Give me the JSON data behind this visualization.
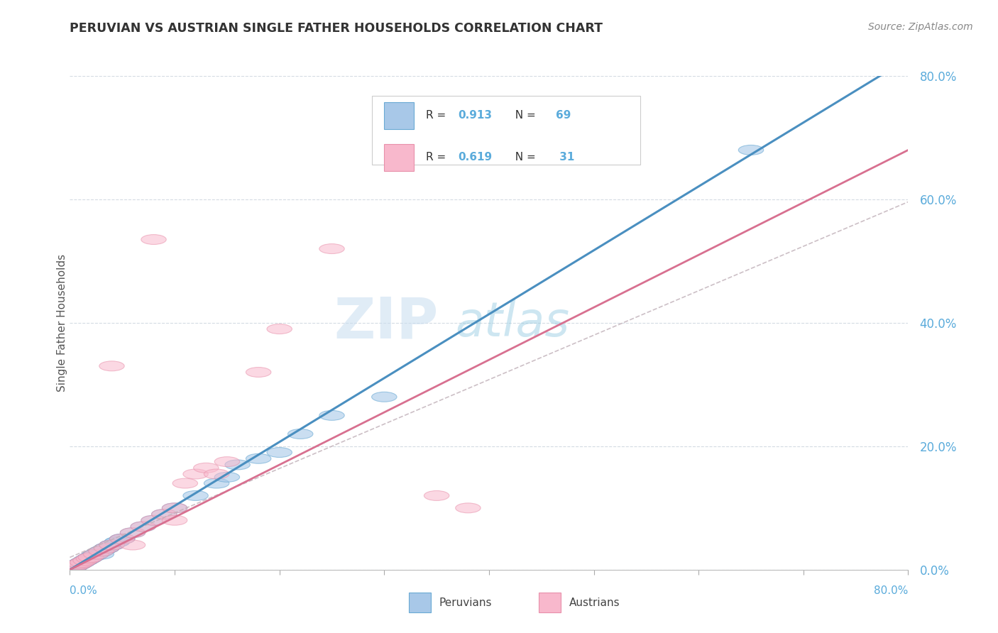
{
  "title": "PERUVIAN VS AUSTRIAN SINGLE FATHER HOUSEHOLDS CORRELATION CHART",
  "source": "Source: ZipAtlas.com",
  "ylabel": "Single Father Households",
  "watermark_zip": "ZIP",
  "watermark_atlas": "atlas",
  "xlim": [
    0.0,
    0.8
  ],
  "ylim": [
    0.0,
    0.8
  ],
  "yticks": [
    0.0,
    0.2,
    0.4,
    0.6,
    0.8
  ],
  "xtick_minor": [
    0.0,
    0.1,
    0.2,
    0.3,
    0.4,
    0.5,
    0.6,
    0.7,
    0.8
  ],
  "blue_color_fill": "#a8c8e8",
  "blue_color_edge": "#6aaad4",
  "blue_line_color": "#4a8fc0",
  "pink_color_fill": "#f8b8cc",
  "pink_color_edge": "#e890aa",
  "pink_line_color": "#d87090",
  "pink_dash_color": "#c0a0b0",
  "grid_color": "#d0d8e0",
  "background_color": "#ffffff",
  "tick_label_color": "#5aabdb",
  "legend_R_N_color": "#5aabdb",
  "title_color": "#333333",
  "source_color": "#888888",
  "blue_scatter_x": [
    0.005,
    0.008,
    0.01,
    0.012,
    0.015,
    0.018,
    0.02,
    0.022,
    0.025,
    0.028,
    0.01,
    0.012,
    0.015,
    0.018,
    0.022,
    0.025,
    0.028,
    0.03,
    0.032,
    0.035,
    0.015,
    0.018,
    0.022,
    0.025,
    0.03,
    0.035,
    0.04,
    0.005,
    0.008,
    0.01,
    0.012,
    0.015,
    0.018,
    0.022,
    0.025,
    0.03,
    0.035,
    0.04,
    0.045,
    0.05,
    0.005,
    0.008,
    0.01,
    0.012,
    0.015,
    0.018,
    0.02,
    0.025,
    0.03,
    0.035,
    0.04,
    0.045,
    0.05,
    0.06,
    0.07,
    0.08,
    0.09,
    0.1,
    0.12,
    0.14,
    0.15,
    0.16,
    0.18,
    0.2,
    0.22,
    0.25,
    0.3,
    0.65,
    0.03
  ],
  "blue_scatter_y": [
    0.005,
    0.008,
    0.01,
    0.012,
    0.015,
    0.018,
    0.02,
    0.022,
    0.025,
    0.028,
    0.01,
    0.012,
    0.015,
    0.018,
    0.022,
    0.025,
    0.028,
    0.03,
    0.032,
    0.035,
    0.015,
    0.018,
    0.022,
    0.025,
    0.03,
    0.035,
    0.04,
    0.005,
    0.008,
    0.01,
    0.012,
    0.015,
    0.018,
    0.022,
    0.025,
    0.03,
    0.035,
    0.04,
    0.045,
    0.05,
    0.005,
    0.008,
    0.01,
    0.012,
    0.015,
    0.018,
    0.02,
    0.025,
    0.03,
    0.035,
    0.04,
    0.045,
    0.05,
    0.06,
    0.07,
    0.08,
    0.09,
    0.1,
    0.12,
    0.14,
    0.15,
    0.17,
    0.18,
    0.19,
    0.22,
    0.25,
    0.28,
    0.68,
    0.025
  ],
  "pink_scatter_x": [
    0.005,
    0.008,
    0.01,
    0.012,
    0.015,
    0.018,
    0.02,
    0.025,
    0.03,
    0.035,
    0.04,
    0.05,
    0.06,
    0.07,
    0.08,
    0.09,
    0.1,
    0.11,
    0.12,
    0.13,
    0.14,
    0.15,
    0.18,
    0.2,
    0.25,
    0.35,
    0.38,
    0.04,
    0.06,
    0.08,
    0.1
  ],
  "pink_scatter_y": [
    0.005,
    0.008,
    0.01,
    0.012,
    0.015,
    0.018,
    0.02,
    0.025,
    0.03,
    0.035,
    0.04,
    0.05,
    0.06,
    0.07,
    0.08,
    0.09,
    0.1,
    0.14,
    0.155,
    0.165,
    0.155,
    0.175,
    0.32,
    0.39,
    0.52,
    0.12,
    0.1,
    0.33,
    0.04,
    0.535,
    0.08
  ],
  "blue_line_slope": 1.035,
  "blue_line_intercept": 0.0,
  "pink_line_slope": 0.85,
  "pink_line_intercept": 0.0,
  "pink_dash_slope": 0.72,
  "pink_dash_intercept": 0.02
}
